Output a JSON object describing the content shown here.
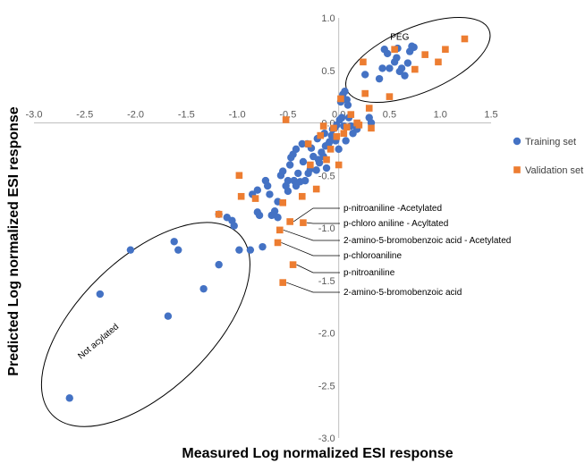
{
  "chart_data": {
    "type": "scatter",
    "title": "",
    "xlabel": "Measured Log normalized ESI response",
    "ylabel": "Predicted Log normalized ESI response",
    "xlim": [
      -3.0,
      1.5
    ],
    "ylim": [
      -3.0,
      1.0
    ],
    "x_ticks": [
      "-3.0",
      "-2.5",
      "-2.0",
      "-1.5",
      "-1.0",
      "-0.5",
      "0.0",
      "0.5",
      "1.0",
      "1.5"
    ],
    "y_ticks": [
      "1.0",
      "0.5",
      "0.0",
      "-0.5",
      "-1.0",
      "-1.5",
      "-2.0",
      "-2.5",
      "-3.0"
    ],
    "grid": false,
    "legend_position": "right",
    "series": [
      {
        "name": "Training set",
        "color": "#4472C4",
        "marker": "circle",
        "points": [
          [
            -2.65,
            -2.62
          ],
          [
            -2.35,
            -1.63
          ],
          [
            -1.68,
            -1.84
          ],
          [
            -1.33,
            -1.58
          ],
          [
            -1.18,
            -1.35
          ],
          [
            -2.05,
            -1.21
          ],
          [
            -1.62,
            -1.13
          ],
          [
            -1.58,
            -1.21
          ],
          [
            -1.18,
            -0.87
          ],
          [
            -1.1,
            -0.9
          ],
          [
            -1.05,
            -0.93
          ],
          [
            -1.03,
            -0.98
          ],
          [
            -0.98,
            -1.21
          ],
          [
            -0.87,
            -1.21
          ],
          [
            -0.75,
            -1.18
          ],
          [
            -0.8,
            -0.85
          ],
          [
            -0.85,
            -0.68
          ],
          [
            -0.8,
            -0.64
          ],
          [
            -0.78,
            -0.88
          ],
          [
            -0.72,
            -0.55
          ],
          [
            -0.7,
            -0.6
          ],
          [
            -0.68,
            -0.68
          ],
          [
            -0.66,
            -0.88
          ],
          [
            -0.63,
            -0.84
          ],
          [
            -0.6,
            -0.9
          ],
          [
            -0.6,
            -0.75
          ],
          [
            -0.57,
            -0.5
          ],
          [
            -0.55,
            -0.46
          ],
          [
            -0.52,
            -0.6
          ],
          [
            -0.5,
            -0.55
          ],
          [
            -0.5,
            -0.65
          ],
          [
            -0.48,
            -0.4
          ],
          [
            -0.47,
            -0.33
          ],
          [
            -0.45,
            -0.3
          ],
          [
            -0.44,
            -0.55
          ],
          [
            -0.42,
            -0.6
          ],
          [
            -0.42,
            -0.25
          ],
          [
            -0.4,
            -0.48
          ],
          [
            -0.38,
            -0.56
          ],
          [
            -0.36,
            -0.2
          ],
          [
            -0.35,
            -0.37
          ],
          [
            -0.33,
            -0.55
          ],
          [
            -0.31,
            -0.2
          ],
          [
            -0.3,
            -0.48
          ],
          [
            -0.28,
            -0.44
          ],
          [
            -0.27,
            -0.24
          ],
          [
            -0.25,
            -0.32
          ],
          [
            -0.22,
            -0.45
          ],
          [
            -0.21,
            -0.15
          ],
          [
            -0.2,
            -0.35
          ],
          [
            -0.19,
            -0.38
          ],
          [
            -0.17,
            -0.28
          ],
          [
            -0.15,
            -0.32
          ],
          [
            -0.14,
            -0.1
          ],
          [
            -0.13,
            -0.22
          ],
          [
            -0.12,
            -0.43
          ],
          [
            -0.1,
            -0.2
          ],
          [
            -0.09,
            -0.18
          ],
          [
            -0.07,
            -0.12
          ],
          [
            -0.06,
            -0.06
          ],
          [
            -0.04,
            -0.05
          ],
          [
            -0.03,
            -0.17
          ],
          [
            -0.02,
            -0.02
          ],
          [
            0.0,
            -0.25
          ],
          [
            0.01,
            0.03
          ],
          [
            0.02,
            0.2
          ],
          [
            0.03,
            0.05
          ],
          [
            0.04,
            0.27
          ],
          [
            0.05,
            -0.03
          ],
          [
            0.06,
            0.3
          ],
          [
            0.07,
            -0.17
          ],
          [
            0.08,
            0.22
          ],
          [
            0.09,
            0.17
          ],
          [
            0.1,
            0.05
          ],
          [
            0.12,
            -0.03
          ],
          [
            0.14,
            -0.1
          ],
          [
            0.18,
            -0.06
          ],
          [
            0.3,
            0.05
          ],
          [
            0.32,
            0.0
          ],
          [
            0.4,
            0.42
          ],
          [
            0.43,
            0.52
          ],
          [
            0.45,
            0.7
          ],
          [
            0.48,
            0.66
          ],
          [
            0.5,
            0.52
          ],
          [
            0.55,
            0.58
          ],
          [
            0.57,
            0.62
          ],
          [
            0.58,
            0.71
          ],
          [
            0.6,
            0.49
          ],
          [
            0.62,
            0.52
          ],
          [
            0.65,
            0.45
          ],
          [
            0.68,
            0.57
          ],
          [
            0.7,
            0.68
          ],
          [
            0.72,
            0.73
          ],
          [
            0.74,
            0.72
          ],
          [
            0.26,
            0.46
          ]
        ]
      },
      {
        "name": "Validation set",
        "color": "#ED7D31",
        "marker": "square",
        "points": [
          [
            -1.18,
            -0.87
          ],
          [
            -0.98,
            -0.5
          ],
          [
            -0.96,
            -0.7
          ],
          [
            -0.82,
            -0.72
          ],
          [
            -0.55,
            -0.76
          ],
          [
            -0.52,
            0.03
          ],
          [
            -0.48,
            -0.94
          ],
          [
            -0.36,
            -0.7
          ],
          [
            -0.3,
            -0.2
          ],
          [
            -0.28,
            -0.4
          ],
          [
            -0.22,
            -0.63
          ],
          [
            -0.18,
            -0.12
          ],
          [
            -0.15,
            -0.03
          ],
          [
            -0.12,
            -0.35
          ],
          [
            -0.08,
            -0.25
          ],
          [
            -0.05,
            -0.05
          ],
          [
            -0.02,
            -0.13
          ],
          [
            0.0,
            -0.4
          ],
          [
            0.02,
            0.23
          ],
          [
            0.05,
            -0.1
          ],
          [
            0.08,
            -0.04
          ],
          [
            0.12,
            0.08
          ],
          [
            0.18,
            0.0
          ],
          [
            0.2,
            -0.02
          ],
          [
            0.24,
            0.58
          ],
          [
            0.26,
            0.28
          ],
          [
            0.3,
            0.14
          ],
          [
            0.32,
            -0.05
          ],
          [
            0.5,
            0.25
          ],
          [
            0.55,
            0.7
          ],
          [
            0.75,
            0.51
          ],
          [
            0.85,
            0.65
          ],
          [
            0.98,
            0.58
          ],
          [
            1.05,
            0.7
          ],
          [
            1.24,
            0.8
          ],
          [
            -0.35,
            -0.95
          ],
          [
            -0.58,
            -1.02
          ],
          [
            -0.6,
            -1.14
          ],
          [
            -0.45,
            -1.35
          ],
          [
            -0.55,
            -1.52
          ]
        ]
      }
    ],
    "annotations": [
      {
        "text": "p-nitroaniline -Acetylated",
        "point": [
          -0.48,
          -0.94
        ]
      },
      {
        "text": "p-chloro aniline - Acyltated",
        "point": [
          -0.35,
          -0.95
        ]
      },
      {
        "text": "2-amino-5-bromobenzoic acid - Acetylated",
        "point": [
          -0.58,
          -1.02
        ]
      },
      {
        "text": "p-chloroaniline",
        "point": [
          -0.6,
          -1.14
        ]
      },
      {
        "text": "p-nitroaniline",
        "point": [
          -0.45,
          -1.35
        ]
      },
      {
        "text": "2-amino-5-bromobenzoic acid",
        "point": [
          -0.55,
          -1.52
        ]
      }
    ],
    "groups": [
      {
        "label": "PEG"
      },
      {
        "label": "Not acylated"
      }
    ]
  }
}
